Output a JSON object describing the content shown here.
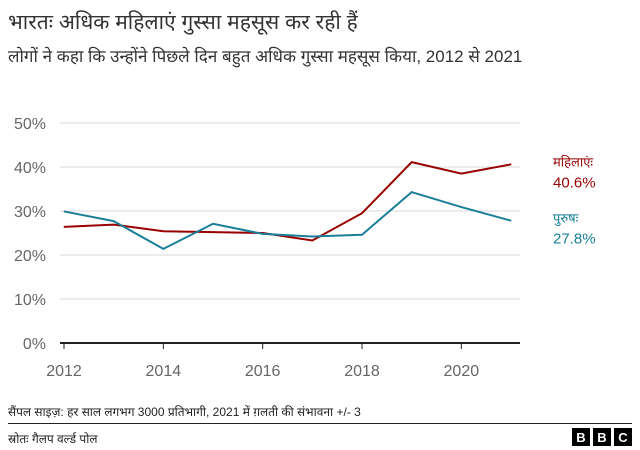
{
  "header": {
    "title": "भारतः अधिक महिलाएं गुस्सा महसूस कर रही हैं",
    "subtitle": "लोगों ने कहा कि उन्होंने पिछले दिन बहुत अधिक गुस्सा महसूस किया, 2012 से 2021"
  },
  "chart_data": {
    "type": "line",
    "title": "भारतः अधिक महिलाएं गुस्सा महसूस कर रही हैं",
    "x": [
      2012,
      2013,
      2014,
      2015,
      2016,
      2017,
      2018,
      2019,
      2020,
      2021
    ],
    "xticks": [
      "2012",
      "2014",
      "2016",
      "2018",
      "2020"
    ],
    "yticks": [
      "0%",
      "10%",
      "20%",
      "30%",
      "40%",
      "50%"
    ],
    "ylim": [
      0,
      50
    ],
    "grid": true,
    "series": [
      {
        "name": "महिलाएंः",
        "end_label": "40.6%",
        "color": "#990000",
        "values": [
          26.4,
          26.9,
          25.4,
          25.2,
          25.0,
          23.3,
          29.5,
          41.1,
          38.5,
          40.6
        ]
      },
      {
        "name": "पुरुषः",
        "end_label": "27.8%",
        "color": "#1a7f98",
        "values": [
          29.9,
          27.7,
          21.4,
          27.1,
          24.8,
          24.2,
          24.6,
          34.3,
          30.9,
          27.8
        ]
      }
    ]
  },
  "footer": {
    "note": "सैंपल साइज़: हर साल लगभग 3000 प्रतिभागी, 2021 में ग़लती की संभावना +/- 3",
    "source": "स्रोतः गैलप वर्ल्ड पोल",
    "logo": "BBC"
  }
}
